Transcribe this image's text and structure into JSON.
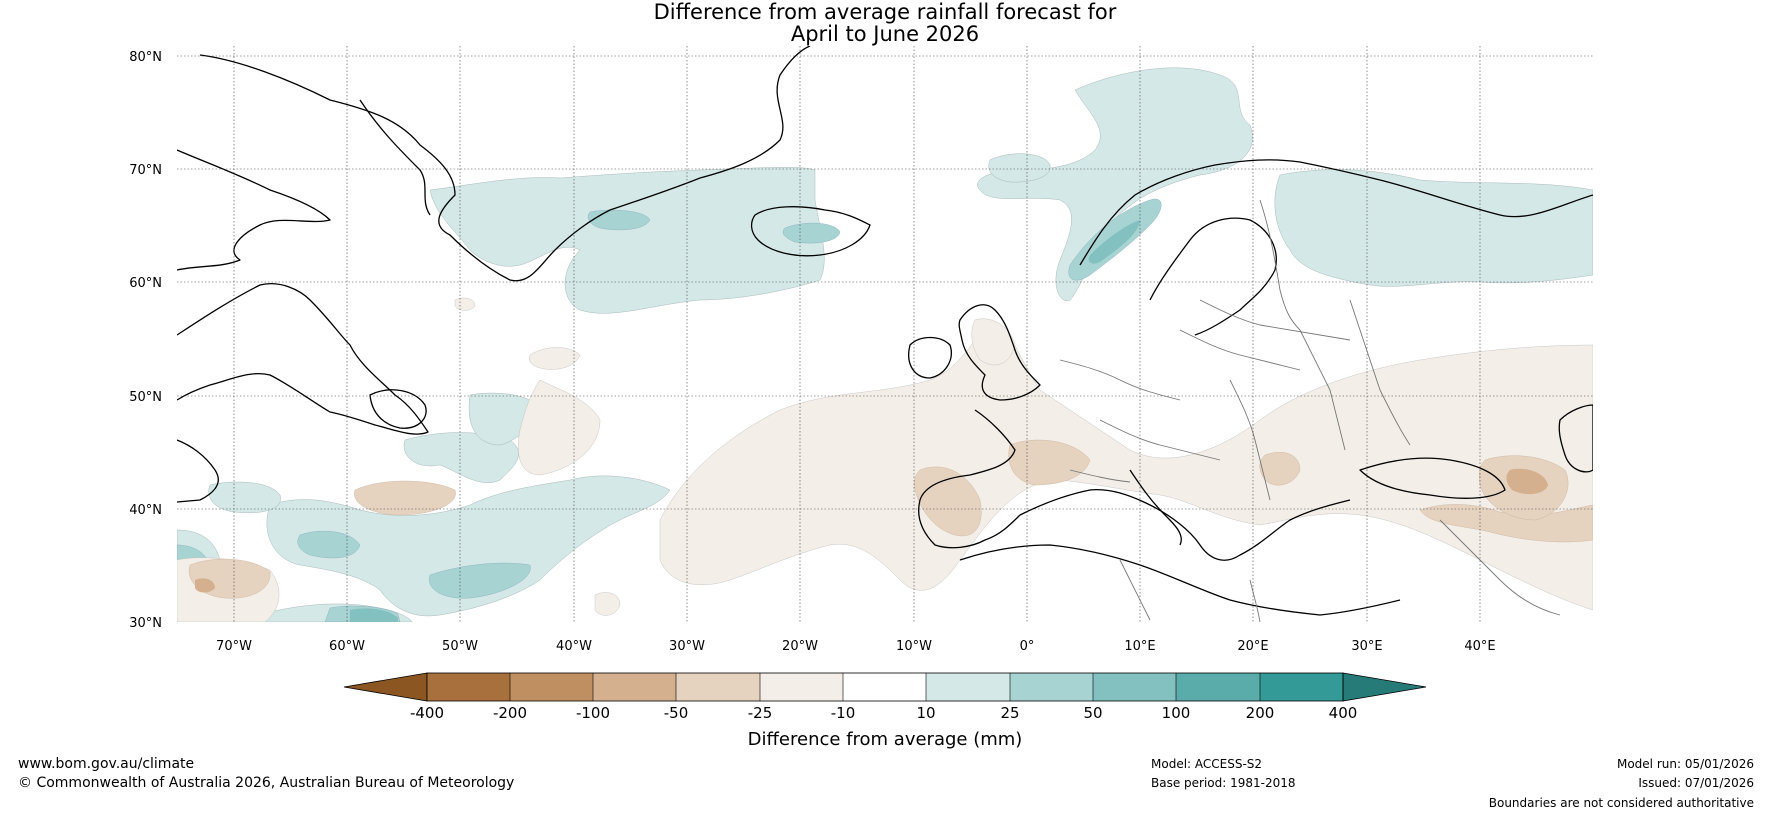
{
  "title_line1": "Difference from average rainfall forecast for",
  "title_line2": "April to June 2026",
  "map": {
    "lat_labels": [
      "80°N",
      "70°N",
      "60°N",
      "50°N",
      "40°N",
      "30°N"
    ],
    "lon_labels": [
      "70°W",
      "60°W",
      "50°W",
      "40°W",
      "30°W",
      "20°W",
      "10°W",
      "0°",
      "10°E",
      "20°E",
      "30°E",
      "40°E"
    ]
  },
  "colorbar": {
    "title": "Difference from average (mm)",
    "ticks": [
      "-400",
      "-200",
      "-100",
      "-50",
      "-25",
      "-10",
      "10",
      "25",
      "50",
      "100",
      "200",
      "400"
    ],
    "colors": [
      "#8c5622",
      "#a8703c",
      "#c08f61",
      "#d4b08e",
      "#e5d2bf",
      "#f3eee7",
      "#ffffff",
      "#d3e8e7",
      "#a7d3d2",
      "#82c1bf",
      "#5aacaa",
      "#339a97",
      "#267b79"
    ]
  },
  "footer": {
    "url": "www.bom.gov.au/climate",
    "copyright": "© Commonwealth of Australia 2026, Australian Bureau of Meteorology",
    "model": "Model: ACCESS-S2",
    "base_period": "Base period: 1981-2018",
    "model_run": "Model run: 05/01/2026",
    "issued": "Issued: 07/01/2026",
    "disclaimer": "Boundaries are not considered authoritative"
  }
}
